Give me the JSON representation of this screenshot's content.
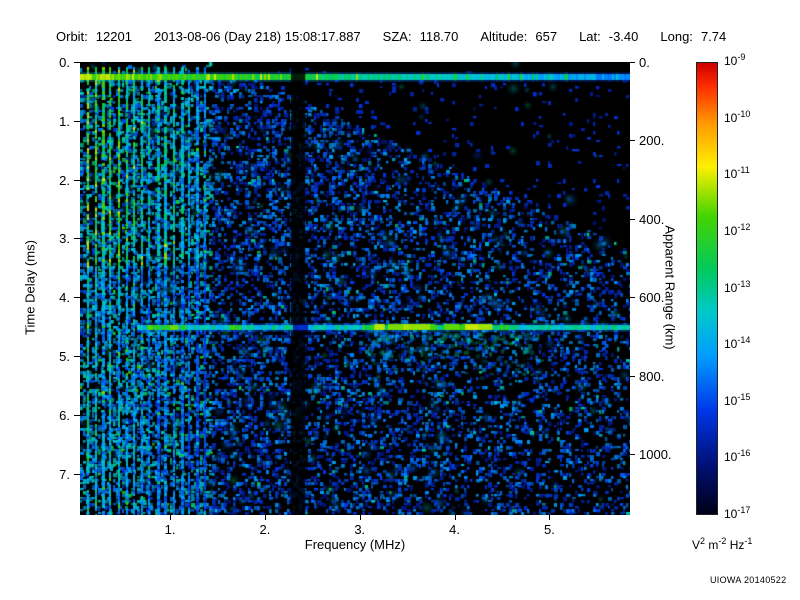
{
  "header": {
    "fields": [
      {
        "label": "Orbit:",
        "value": "12201"
      },
      {
        "label": "",
        "value": "2013-08-06 (Day 218) 15:08:17.887"
      },
      {
        "label": "SZA:",
        "value": "118.70"
      },
      {
        "label": "Altitude:",
        "value": "657"
      },
      {
        "label": "Lat:",
        "value": "-3.40"
      },
      {
        "label": "Long:",
        "value": "7.74"
      }
    ]
  },
  "chart_data": {
    "type": "heatmap",
    "title": "",
    "xlabel": "Frequency (MHz)",
    "ylabel_left": "Time Delay (ms)",
    "ylabel_right": "Apparent Range (km)",
    "x_min": 0.05,
    "x_max": 5.85,
    "y_max_ms": 7.7,
    "right_max_km": 1155,
    "x_ticks": [
      1,
      2,
      3,
      4,
      5
    ],
    "x_tick_labels": [
      "1.",
      "2.",
      "3.",
      "4.",
      "5."
    ],
    "y_ticks_ms": [
      0,
      1,
      2,
      3,
      4,
      5,
      6,
      7
    ],
    "y_tick_labels": [
      "0.",
      "1.",
      "2.",
      "3.",
      "4.",
      "5.",
      "6.",
      "7."
    ],
    "right_ticks_km": [
      0,
      200,
      400,
      600,
      800,
      1000
    ],
    "right_tick_labels": [
      "0.",
      "200.",
      "400.",
      "600.",
      "800.",
      "1000."
    ],
    "colorbar": {
      "scale": "log",
      "base": "10",
      "tick_exponents": [
        "-9",
        "-10",
        "-11",
        "-12",
        "-13",
        "-14",
        "-15",
        "-16",
        "-17"
      ],
      "unit_parts": [
        {
          "text": "V"
        },
        {
          "text": "2",
          "sup": true
        },
        {
          "text": " m"
        },
        {
          "text": "-2",
          "sup": true
        },
        {
          "text": " Hz"
        },
        {
          "text": "-1",
          "sup": true
        }
      ],
      "stops": [
        {
          "pos": 0.0,
          "color": "#cc0000"
        },
        {
          "pos": 0.05,
          "color": "#ff2a00"
        },
        {
          "pos": 0.13,
          "color": "#ff9500"
        },
        {
          "pos": 0.23,
          "color": "#fdf000"
        },
        {
          "pos": 0.34,
          "color": "#44d400"
        },
        {
          "pos": 0.46,
          "color": "#00c95e"
        },
        {
          "pos": 0.55,
          "color": "#00c9c9"
        },
        {
          "pos": 0.65,
          "color": "#009dff"
        },
        {
          "pos": 0.77,
          "color": "#0037e8"
        },
        {
          "pos": 0.89,
          "color": "#001078"
        },
        {
          "pos": 1.0,
          "color": "#000018"
        }
      ]
    },
    "features": [
      {
        "name": "transmit-pulse-band",
        "time_ms": 0.25,
        "desc": "Bright horizontal band at near-zero time delay across all frequencies"
      },
      {
        "name": "plasma-harmonic-lines",
        "f_start_mhz": 0.12,
        "f_end_mhz": 1.35,
        "count": 16,
        "desc": "Vertical green electron plasma oscillation harmonic stripes at low frequencies"
      },
      {
        "name": "interference-gap",
        "f_mhz": 2.35,
        "width_mhz": 0.15,
        "desc": "Dark vertical band of suppressed signal"
      },
      {
        "name": "ground-echo",
        "time_ms": 4.5,
        "apparent_range_km": 675,
        "f_start_mhz": 0.65,
        "bright_f_start_mhz": 3.0,
        "bright_f_end_mhz": 4.6,
        "desc": "Horizontal cyan surface-reflection trace with brighter dashed segments"
      },
      {
        "name": "diffuse-echo",
        "f_start_mhz": 3.1,
        "f_end_mhz": 4.9,
        "time_start_ms": 4.6,
        "time_end_ms": 5.6,
        "desc": "Faint diffuse scatter below the ground echo"
      },
      {
        "name": "noise-speckle",
        "desc": "Mottled blue background noise, darker wedge toward upper right"
      }
    ]
  },
  "footer": {
    "credit": "UIOWA 20140522"
  }
}
